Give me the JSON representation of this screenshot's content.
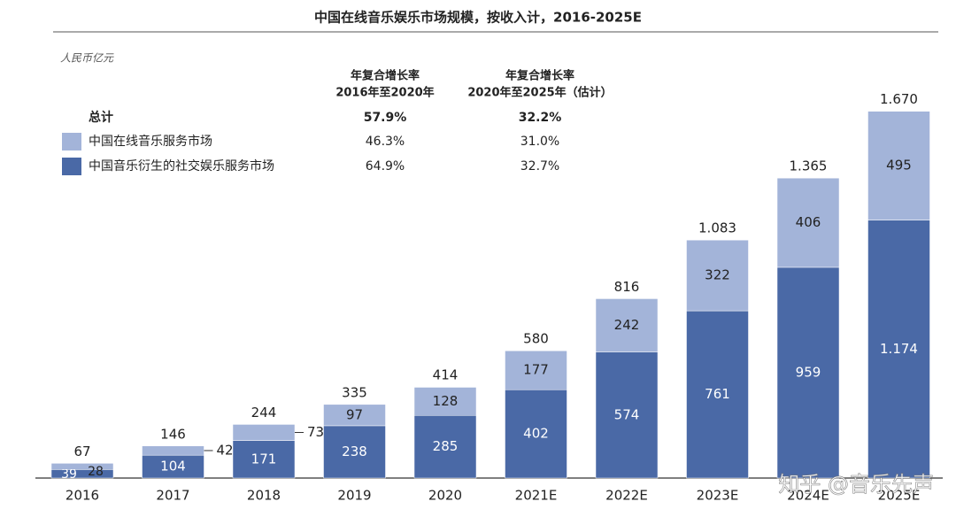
{
  "chart_data": {
    "type": "stacked_bar",
    "title": "中国在线音乐娱乐市场规模，按收入计，2016-2025E",
    "unit": "人民币亿元",
    "categories": [
      "2016",
      "2017",
      "2018",
      "2019",
      "2020",
      "2021E",
      "2022E",
      "2023E",
      "2024E",
      "2025E"
    ],
    "series": [
      {
        "name": "中国音乐衍生的社交娱乐服务市场",
        "color": "#4a69a6",
        "values": [
          39,
          104,
          171,
          238,
          285,
          402,
          574,
          761,
          959,
          1174
        ],
        "value_labels": [
          "39",
          "104",
          "171",
          "238",
          "285",
          "402",
          "574",
          "761",
          "959",
          "1.174"
        ]
      },
      {
        "name": "中国在线音乐服务市场",
        "color": "#a3b4d9",
        "values": [
          28,
          42,
          73,
          97,
          128,
          177,
          242,
          322,
          406,
          495
        ]
      }
    ],
    "totals": {
      "values": [
        67,
        146,
        244,
        335,
        414,
        580,
        816,
        1083,
        1365,
        1670
      ],
      "value_labels": [
        "67",
        "146",
        "244",
        "335",
        "414",
        "580",
        "816",
        "1.083",
        "1.365",
        "1.670"
      ]
    },
    "ylim": [
      0,
      1700
    ],
    "cagr": {
      "headers": [
        [
          "年复合增长率",
          "2016年至2020年"
        ],
        [
          "年复合增长率",
          "2020年至2025年（估计）"
        ]
      ],
      "total": {
        "label": "总计",
        "values": [
          "57.9%",
          "32.2%"
        ]
      },
      "rows": [
        [
          "46.3%",
          "31.0%"
        ],
        [
          "64.9%",
          "32.7%"
        ]
      ]
    },
    "watermark": "知乎 @音乐先声"
  }
}
